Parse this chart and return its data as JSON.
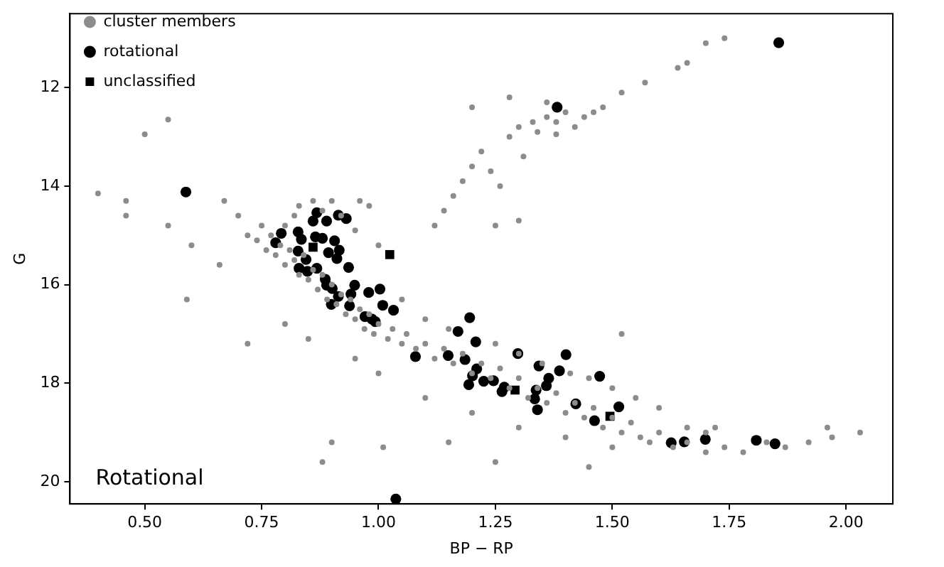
{
  "chart_data": {
    "type": "scatter",
    "xlabel": "BP − RP",
    "ylabel": "G",
    "xlim": [
      0.34,
      2.1
    ],
    "ylim": [
      20.45,
      10.5
    ],
    "xticks": [
      {
        "value": 0.5,
        "label": "0.50"
      },
      {
        "value": 0.75,
        "label": "0.75"
      },
      {
        "value": 1.0,
        "label": "1.00"
      },
      {
        "value": 1.25,
        "label": "1.25"
      },
      {
        "value": 1.5,
        "label": "1.50"
      },
      {
        "value": 1.75,
        "label": "1.75"
      },
      {
        "value": 2.0,
        "label": "2.00"
      }
    ],
    "yticks": [
      12,
      14,
      16,
      18,
      20
    ],
    "grid": false,
    "legend": "top left",
    "annotations": [
      "Rotational"
    ],
    "series": [
      {
        "name": "cluster members",
        "color": "#8c8c8c",
        "marker": "circle",
        "x": [
          0.74,
          0.76,
          0.77,
          0.78,
          0.79,
          0.8,
          0.81,
          0.82,
          0.83,
          0.84,
          0.85,
          0.86,
          0.87,
          0.88,
          0.89,
          0.9,
          0.91,
          0.92,
          0.93,
          0.94,
          0.95,
          0.96,
          0.97,
          0.98,
          0.99,
          1.0,
          1.02,
          1.03,
          1.05,
          1.06,
          1.08,
          1.1,
          1.12,
          1.14,
          1.16,
          1.18,
          1.2,
          1.22,
          1.24,
          1.26,
          1.28,
          1.3,
          1.32,
          1.34,
          1.36,
          1.38,
          1.4,
          1.42,
          1.44,
          1.46,
          1.48,
          1.5,
          1.52,
          1.54,
          1.56,
          1.58,
          1.6,
          1.63,
          1.66,
          1.7,
          1.74,
          1.78,
          1.83,
          1.87,
          1.92,
          1.97,
          2.03,
          1.96,
          1.66,
          1.7,
          1.05,
          1.1,
          1.15,
          1.25,
          1.3,
          1.35,
          1.45,
          1.5,
          1.55,
          1.6,
          1.72,
          1.52,
          1.41,
          0.95,
          1.0,
          1.1,
          1.2,
          1.3,
          1.4,
          1.5,
          0.85,
          0.8,
          1.15,
          1.25,
          1.45,
          0.9,
          0.88,
          1.01,
          0.83,
          0.86,
          0.88,
          0.9,
          0.92,
          0.96,
          0.98,
          0.8,
          0.82,
          0.95,
          1.0,
          0.4,
          0.46,
          0.46,
          0.5,
          0.55,
          0.59,
          0.7,
          0.72,
          0.75,
          0.6,
          0.66,
          0.72,
          0.55,
          0.67,
          1.12,
          1.14,
          1.16,
          1.18,
          1.2,
          1.22,
          1.24,
          1.26,
          1.25,
          1.3,
          1.28,
          1.3,
          1.33,
          1.36,
          1.38,
          1.4,
          1.42,
          1.44,
          1.46,
          1.34,
          1.38,
          1.31,
          1.48,
          1.52,
          1.57,
          1.66,
          1.7,
          1.74,
          1.64,
          1.28,
          1.36,
          1.2
        ],
        "values": [
          15.1,
          15.3,
          15.0,
          15.4,
          15.2,
          15.6,
          15.3,
          15.5,
          15.8,
          15.4,
          15.9,
          15.7,
          16.1,
          15.8,
          16.3,
          16.0,
          16.4,
          16.2,
          16.6,
          16.3,
          16.7,
          16.5,
          16.9,
          16.6,
          17.0,
          16.8,
          17.1,
          16.9,
          17.2,
          17.0,
          17.3,
          17.2,
          17.5,
          17.3,
          17.6,
          17.4,
          17.8,
          17.6,
          17.9,
          17.7,
          18.1,
          17.9,
          18.3,
          18.1,
          18.4,
          18.2,
          18.6,
          18.4,
          18.7,
          18.5,
          18.9,
          18.7,
          19.0,
          18.8,
          19.1,
          19.2,
          19.0,
          19.3,
          19.2,
          19.4,
          19.3,
          19.4,
          19.2,
          19.3,
          19.2,
          19.1,
          19.0,
          18.9,
          18.9,
          19.0,
          16.3,
          16.7,
          16.9,
          17.2,
          17.4,
          17.6,
          17.9,
          18.1,
          18.3,
          18.5,
          18.9,
          17.0,
          17.8,
          17.5,
          17.8,
          18.3,
          18.6,
          18.9,
          19.1,
          19.3,
          17.1,
          16.8,
          19.2,
          19.6,
          19.7,
          19.2,
          19.6,
          19.3,
          14.4,
          14.3,
          14.5,
          14.3,
          14.6,
          14.3,
          14.4,
          14.8,
          14.6,
          14.9,
          15.2,
          14.15,
          14.3,
          14.6,
          12.95,
          12.65,
          16.3,
          14.6,
          15.0,
          14.8,
          15.2,
          15.6,
          17.2,
          14.8,
          14.3,
          14.8,
          14.5,
          14.2,
          13.9,
          13.6,
          13.3,
          13.7,
          14.0,
          14.8,
          14.7,
          13.0,
          12.8,
          12.7,
          12.6,
          12.7,
          12.5,
          12.8,
          12.6,
          12.5,
          12.9,
          12.95,
          13.4,
          12.4,
          12.1,
          11.9,
          11.5,
          11.1,
          11.0,
          11.6,
          12.2,
          12.3,
          12.4
        ]
      },
      {
        "name": "rotational",
        "color": "#000000",
        "marker": "circle",
        "x": [
          0.868,
          0.86,
          0.889,
          0.914,
          0.931,
          0.792,
          0.78,
          0.828,
          0.835,
          0.865,
          0.88,
          0.906,
          0.916,
          0.893,
          0.828,
          0.845,
          0.911,
          0.936,
          0.83,
          0.848,
          0.868,
          0.886,
          0.889,
          0.901,
          0.949,
          0.979,
          1.003,
          0.914,
          0.941,
          0.899,
          0.938,
          1.009,
          1.032,
          0.971,
          0.986,
          0.993,
          1.195,
          1.17,
          1.208,
          1.079,
          1.149,
          1.185,
          1.21,
          1.201,
          1.193,
          1.225,
          1.246,
          1.269,
          1.264,
          1.298,
          1.343,
          1.401,
          1.387,
          1.364,
          1.337,
          1.334,
          1.34,
          1.359,
          1.422,
          1.473,
          1.514,
          1.462,
          1.626,
          1.654,
          1.699,
          1.808,
          1.848,
          1.856,
          1.382,
          0.588,
          1.037
        ],
        "values": [
          14.54,
          14.71,
          14.71,
          14.59,
          14.66,
          14.96,
          15.15,
          14.93,
          15.08,
          15.03,
          15.06,
          15.11,
          15.3,
          15.35,
          15.32,
          15.49,
          15.47,
          15.65,
          15.67,
          15.73,
          15.67,
          15.89,
          16.01,
          16.08,
          16.01,
          16.16,
          16.09,
          16.24,
          16.19,
          16.4,
          16.43,
          16.42,
          16.52,
          16.65,
          16.7,
          16.75,
          16.67,
          16.95,
          17.16,
          17.46,
          17.44,
          17.52,
          17.71,
          17.85,
          18.03,
          17.96,
          17.95,
          18.08,
          18.17,
          17.4,
          17.65,
          17.42,
          17.75,
          17.9,
          18.14,
          18.32,
          18.54,
          18.05,
          18.42,
          17.86,
          18.48,
          18.76,
          19.21,
          19.19,
          19.14,
          19.16,
          19.23,
          11.09,
          12.4,
          14.12,
          20.35
        ]
      },
      {
        "name": "unclassified",
        "color": "#000000",
        "marker": "square",
        "x": [
          0.86,
          1.024,
          1.292,
          1.495
        ],
        "values": [
          15.24,
          15.39,
          18.14,
          18.67
        ]
      }
    ]
  }
}
